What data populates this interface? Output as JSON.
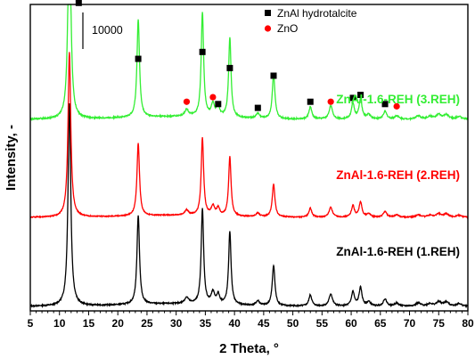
{
  "chart_data": {
    "type": "line",
    "xlabel": "2 Theta, °",
    "ylabel": "Intensity, -",
    "xlim": [
      5,
      80
    ],
    "xticks": [
      5,
      10,
      15,
      20,
      25,
      30,
      35,
      40,
      45,
      50,
      55,
      60,
      65,
      70,
      75,
      80
    ],
    "ylim": [
      0,
      40000
    ],
    "scale_bar": {
      "label": "10000",
      "value": 10000
    },
    "legend": [
      {
        "label": "ZnAl hydrotalcite",
        "marker": "square",
        "color": "#000000"
      },
      {
        "label": "ZnO",
        "marker": "circle",
        "color": "#ff0000"
      }
    ],
    "peaks": [
      {
        "x": 11.7,
        "height": 1.0,
        "width": 0.28
      },
      {
        "x": 23.5,
        "height": 0.44,
        "width": 0.26
      },
      {
        "x": 31.8,
        "height": 0.03,
        "width": 0.4
      },
      {
        "x": 34.5,
        "height": 0.47,
        "width": 0.25
      },
      {
        "x": 36.3,
        "height": 0.055,
        "width": 0.35
      },
      {
        "x": 37.2,
        "height": 0.045,
        "width": 0.3
      },
      {
        "x": 39.2,
        "height": 0.36,
        "width": 0.25
      },
      {
        "x": 44.0,
        "height": 0.022,
        "width": 0.35
      },
      {
        "x": 46.7,
        "height": 0.2,
        "width": 0.27
      },
      {
        "x": 53.0,
        "height": 0.055,
        "width": 0.3
      },
      {
        "x": 56.5,
        "height": 0.06,
        "width": 0.35
      },
      {
        "x": 60.3,
        "height": 0.07,
        "width": 0.3
      },
      {
        "x": 61.6,
        "height": 0.09,
        "width": 0.3
      },
      {
        "x": 63.0,
        "height": 0.02,
        "width": 0.4
      },
      {
        "x": 65.8,
        "height": 0.035,
        "width": 0.35
      },
      {
        "x": 67.8,
        "height": 0.015,
        "width": 0.4
      },
      {
        "x": 71.5,
        "height": 0.015,
        "width": 0.5
      },
      {
        "x": 73.5,
        "height": 0.012,
        "width": 0.5
      },
      {
        "x": 75.0,
        "height": 0.02,
        "width": 0.5
      },
      {
        "x": 76.3,
        "height": 0.02,
        "width": 0.5
      },
      {
        "x": 78.5,
        "height": 0.012,
        "width": 0.5
      }
    ],
    "series": [
      {
        "name": "ZnAl-1.6-REH (1.REH)",
        "color": "#000000",
        "baseline": 600,
        "amplitude": 26500
      },
      {
        "name": "ZnAl-1.6-REH (2.REH)",
        "color": "#ff0000",
        "baseline": 12200,
        "amplitude": 21500
      },
      {
        "name": "ZnAl-1.6-REH (3.REH)",
        "color": "#33ee33",
        "baseline": 25000,
        "amplitude": 29000
      }
    ],
    "hydrotalcite_markers": [
      {
        "x": 13.3,
        "y": 40200
      },
      {
        "x": 23.5,
        "y": 32900
      },
      {
        "x": 34.5,
        "y": 33800
      },
      {
        "x": 37.2,
        "y": 27000
      },
      {
        "x": 39.2,
        "y": 31700
      },
      {
        "x": 44.0,
        "y": 26500
      },
      {
        "x": 46.7,
        "y": 30700
      },
      {
        "x": 53.0,
        "y": 27300
      },
      {
        "x": 60.3,
        "y": 27800
      },
      {
        "x": 61.6,
        "y": 28200
      },
      {
        "x": 65.8,
        "y": 27000
      }
    ],
    "zno_markers": [
      {
        "x": 31.8,
        "y": 27300
      },
      {
        "x": 36.3,
        "y": 27900
      },
      {
        "x": 56.5,
        "y": 27300
      },
      {
        "x": 67.8,
        "y": 26700
      }
    ]
  }
}
